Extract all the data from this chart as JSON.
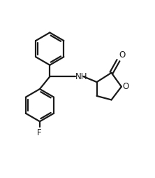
{
  "line_color": "#1a1a1a",
  "bg_color": "#ffffff",
  "line_width": 1.6,
  "font_size": 8.5,
  "figsize": [
    2.22,
    2.54
  ],
  "dpi": 100,
  "xlim": [
    0,
    10
  ],
  "ylim": [
    0,
    11.4
  ]
}
